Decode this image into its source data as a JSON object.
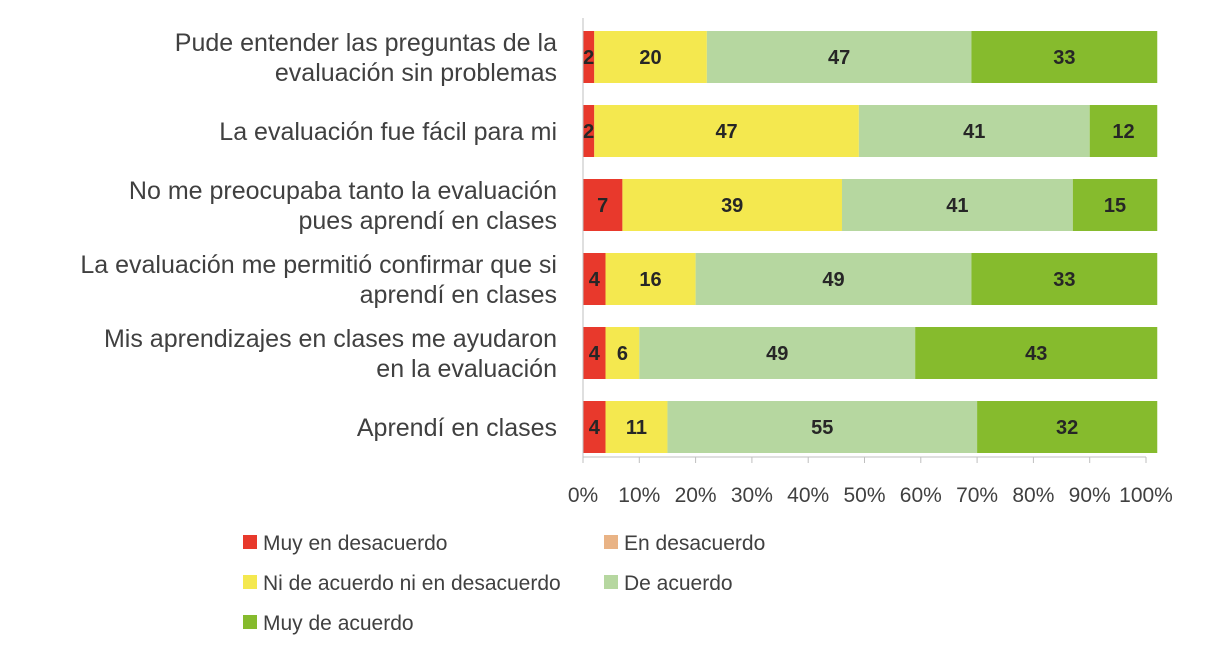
{
  "chart_data": {
    "type": "bar",
    "orientation": "horizontal",
    "stacked": "percent",
    "title": "",
    "xlabel": "",
    "ylabel": "",
    "xlim": [
      0,
      100
    ],
    "x_ticks": [
      "0%",
      "10%",
      "20%",
      "30%",
      "40%",
      "50%",
      "60%",
      "70%",
      "80%",
      "90%",
      "100%"
    ],
    "grid": false,
    "legend_position": "bottom",
    "categories": [
      [
        "Pude entender las preguntas de la",
        "evaluación sin problemas"
      ],
      [
        "La evaluación fue fácil para mi"
      ],
      [
        "No me preocupaba tanto la evaluación",
        "pues aprendí en clases"
      ],
      [
        "La evaluación me permitió confirmar que si",
        "aprendí en clases"
      ],
      [
        "Mis aprendizajes en clases me ayudaron",
        "en la evaluación"
      ],
      [
        "Aprendí en clases"
      ]
    ],
    "series": [
      {
        "name": "Muy en desacuerdo",
        "color": "#e8392c",
        "values": [
          2,
          2,
          7,
          4,
          4,
          4
        ]
      },
      {
        "name": "En desacuerdo",
        "color": "#e9b385",
        "values": [
          0,
          0,
          0,
          0,
          0,
          0
        ]
      },
      {
        "name": "Ni de acuerdo ni en desacuerdo",
        "color": "#f4e84f",
        "values": [
          20,
          47,
          39,
          16,
          6,
          11
        ]
      },
      {
        "name": "De acuerdo",
        "color": "#b6d7a0",
        "values": [
          47,
          41,
          41,
          49,
          49,
          55
        ]
      },
      {
        "name": "Muy de acuerdo",
        "color": "#86bb2d",
        "values": [
          33,
          12,
          15,
          33,
          43,
          32
        ]
      }
    ]
  }
}
